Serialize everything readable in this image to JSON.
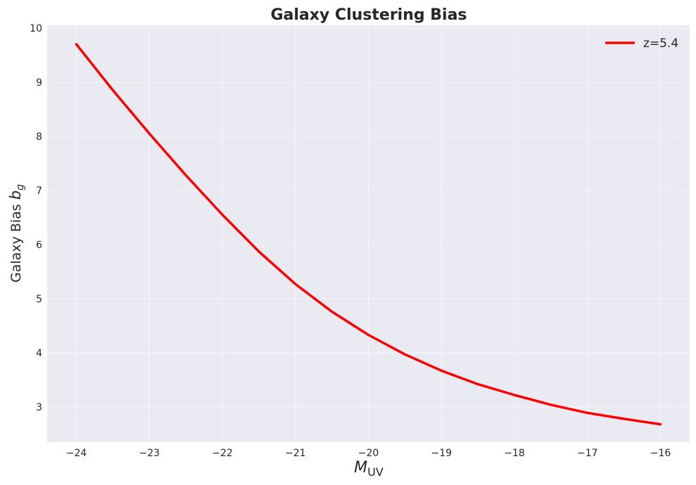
{
  "chart_data": {
    "type": "line",
    "title": "Galaxy Clustering Bias",
    "xlabel": "M",
    "xlabel_sub": "UV",
    "ylabel": "Galaxy Bias ",
    "ylabel_symbol": "b",
    "ylabel_sub": "g",
    "xlim": [
      -24.4,
      -15.6
    ],
    "ylim": [
      2.35,
      10.05
    ],
    "x_ticks": [
      -24,
      -23,
      -22,
      -21,
      -20,
      -19,
      -18,
      -17,
      -16
    ],
    "x_tick_labels": [
      "−24",
      "−23",
      "−22",
      "−21",
      "−20",
      "−19",
      "−18",
      "−17",
      "−16"
    ],
    "y_ticks": [
      3,
      4,
      5,
      6,
      7,
      8,
      9,
      10
    ],
    "y_tick_labels": [
      "3",
      "4",
      "5",
      "6",
      "7",
      "8",
      "9",
      "10"
    ],
    "grid": true,
    "legend_position": "top-right",
    "series": [
      {
        "name": "z=5.4",
        "color": "#ff0000",
        "x": [
          -24,
          -23.5,
          -23,
          -22.5,
          -22,
          -21.5,
          -21,
          -20.5,
          -20,
          -19.5,
          -19,
          -18.5,
          -18,
          -17.5,
          -17,
          -16.5,
          -16
        ],
        "y": [
          9.7,
          8.85,
          8.05,
          7.28,
          6.55,
          5.87,
          5.27,
          4.76,
          4.33,
          3.97,
          3.67,
          3.42,
          3.22,
          3.04,
          2.89,
          2.78,
          2.68
        ]
      }
    ]
  }
}
